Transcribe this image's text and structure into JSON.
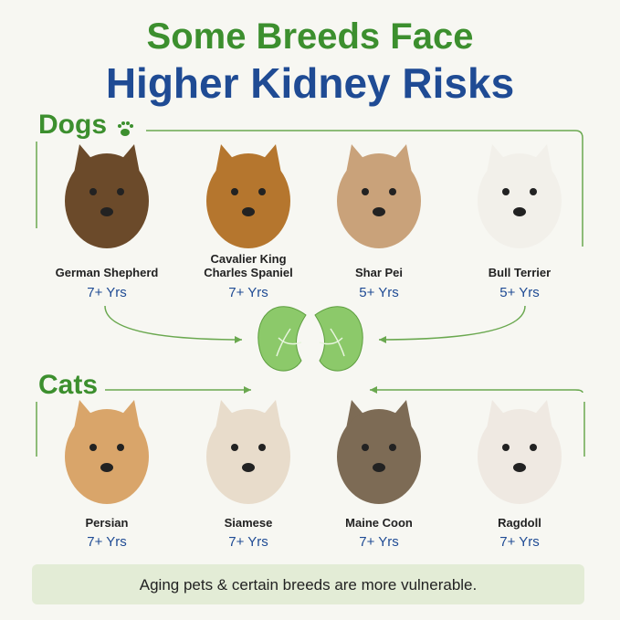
{
  "header": {
    "line1": "Some Breeds Face",
    "line2": "Higher Kidney Risks"
  },
  "sections": [
    {
      "label": "Dogs",
      "breeds": [
        {
          "name": "German Shepherd",
          "age": "7+ Yrs"
        },
        {
          "name": "Cavalier King Charles Spaniel",
          "age": "7+ Yrs"
        },
        {
          "name": "Shar Pei",
          "age": "5+ Yrs"
        },
        {
          "name": "Bull Terrier",
          "age": "5+ Yrs"
        }
      ]
    },
    {
      "label": "Cats",
      "breeds": [
        {
          "name": "Persian",
          "age": "7+ Yrs"
        },
        {
          "name": "Siamese",
          "age": "7+ Yrs"
        },
        {
          "name": "Maine Coon",
          "age": "7+ Yrs"
        },
        {
          "name": "Ragdoll",
          "age": "7+ Yrs"
        }
      ]
    }
  ],
  "footer": {
    "text": "Aging pets & certain breeds are more vulnerable."
  }
}
